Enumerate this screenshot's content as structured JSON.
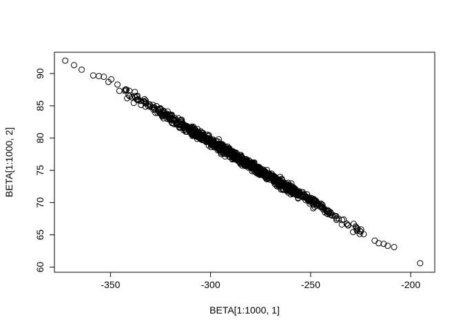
{
  "chart_data": {
    "type": "scatter",
    "title": "",
    "xlabel": "BETA[1:1000, 1]",
    "ylabel": "BETA[1:1000, 2]",
    "xlim": [
      -378,
      -188
    ],
    "ylim": [
      59.2,
      93.3
    ],
    "xticks": [
      -350,
      -300,
      -250,
      -200
    ],
    "xtick_labels": [
      "-350",
      "-300",
      "-250",
      "-200"
    ],
    "yticks": [
      60,
      65,
      70,
      75,
      80,
      85,
      90
    ],
    "ytick_labels": [
      "60",
      "65",
      "70",
      "75",
      "80",
      "85",
      "90"
    ],
    "grid": false,
    "legend": "none",
    "marker": "open-circle",
    "marker_color": "#000000",
    "n_points": 1000,
    "relationship": {
      "slope": -0.1836,
      "intercept": 24.33,
      "residual_sd": 0.35
    },
    "distribution": {
      "x_center": -285,
      "x_sd": 25
    },
    "points": [
      [
        -372.6,
        92.0
      ],
      [
        -368.2,
        91.3
      ],
      [
        -364.4,
        90.6
      ],
      [
        -358.6,
        89.7
      ],
      [
        -355.8,
        89.6
      ],
      [
        -353.3,
        89.5
      ],
      [
        -349.6,
        89.1
      ],
      [
        -351.0,
        88.7
      ],
      [
        -346.5,
        88.3
      ],
      [
        -342.0,
        87.5
      ],
      [
        -338.0,
        86.5
      ],
      [
        -333.0,
        85.6
      ],
      [
        -328.0,
        84.7
      ],
      [
        -322.0,
        83.6
      ],
      [
        -316.0,
        82.5
      ],
      [
        -310.0,
        81.4
      ],
      [
        -304.0,
        80.3
      ],
      [
        -298.0,
        79.2
      ],
      [
        -292.0,
        78.1
      ],
      [
        -286.0,
        77.0
      ],
      [
        -280.0,
        75.9
      ],
      [
        -274.0,
        74.8
      ],
      [
        -268.0,
        73.7
      ],
      [
        -262.0,
        72.6
      ],
      [
        -256.0,
        71.5
      ],
      [
        -250.0,
        70.4
      ],
      [
        -244.0,
        69.3
      ],
      [
        -240.0,
        68.4
      ],
      [
        -236.0,
        67.5
      ],
      [
        -232.0,
        66.7
      ],
      [
        -227.5,
        66.3
      ],
      [
        -225.0,
        65.5
      ],
      [
        -223.5,
        65.1
      ],
      [
        -227.0,
        65.8
      ],
      [
        -218.0,
        64.1
      ],
      [
        -216.0,
        63.7
      ],
      [
        -213.5,
        63.6
      ],
      [
        -211.5,
        63.3
      ],
      [
        -208.3,
        63.1
      ],
      [
        -195.3,
        60.6
      ]
    ]
  }
}
